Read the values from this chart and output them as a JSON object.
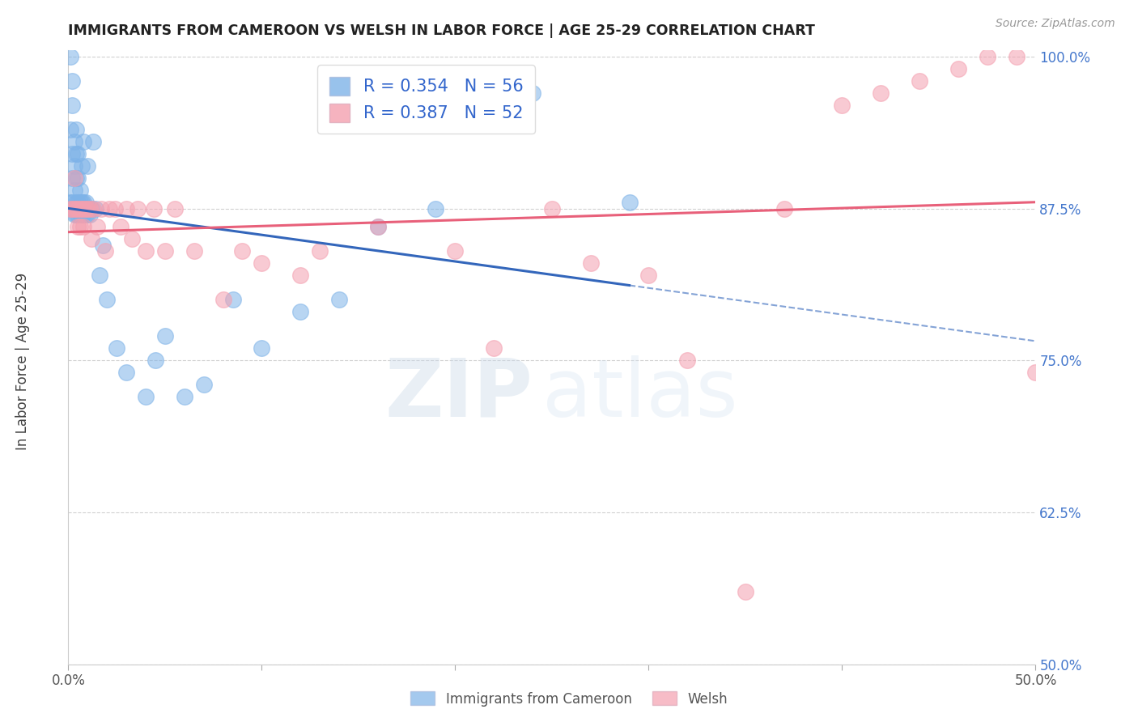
{
  "title": "IMMIGRANTS FROM CAMEROON VS WELSH IN LABOR FORCE | AGE 25-29 CORRELATION CHART",
  "source": "Source: ZipAtlas.com",
  "ylabel": "In Labor Force | Age 25-29",
  "xlim": [
    0.0,
    0.5
  ],
  "ylim": [
    0.5,
    1.005
  ],
  "xticks": [
    0.0,
    0.1,
    0.2,
    0.3,
    0.4,
    0.5
  ],
  "xticklabels": [
    "0.0%",
    "",
    "",
    "",
    "",
    "50.0%"
  ],
  "yticks": [
    0.5,
    0.625,
    0.75,
    0.875,
    1.0
  ],
  "yticklabels": [
    "50.0%",
    "62.5%",
    "75.0%",
    "87.5%",
    "100.0%"
  ],
  "blue_color": "#7EB3E8",
  "pink_color": "#F4A0B0",
  "blue_line_color": "#3366BB",
  "pink_line_color": "#E8607A",
  "legend_r_blue": "R = 0.354",
  "legend_n_blue": "N = 56",
  "legend_r_pink": "R = 0.387",
  "legend_n_pink": "N = 52",
  "legend_label_blue": "Immigrants from Cameroon",
  "legend_label_pink": "Welsh",
  "blue_x": [
    0.001,
    0.001,
    0.001,
    0.002,
    0.002,
    0.002,
    0.002,
    0.002,
    0.003,
    0.003,
    0.003,
    0.003,
    0.004,
    0.004,
    0.004,
    0.004,
    0.004,
    0.005,
    0.005,
    0.005,
    0.005,
    0.006,
    0.006,
    0.006,
    0.007,
    0.007,
    0.007,
    0.008,
    0.008,
    0.008,
    0.009,
    0.009,
    0.01,
    0.01,
    0.011,
    0.012,
    0.013,
    0.014,
    0.016,
    0.018,
    0.02,
    0.025,
    0.03,
    0.04,
    0.045,
    0.05,
    0.06,
    0.07,
    0.085,
    0.1,
    0.12,
    0.14,
    0.16,
    0.19,
    0.24,
    0.29
  ],
  "blue_y": [
    0.88,
    0.94,
    1.0,
    0.88,
    0.9,
    0.92,
    0.96,
    0.98,
    0.87,
    0.89,
    0.91,
    0.93,
    0.87,
    0.88,
    0.9,
    0.92,
    0.94,
    0.87,
    0.88,
    0.9,
    0.92,
    0.87,
    0.88,
    0.89,
    0.87,
    0.88,
    0.91,
    0.87,
    0.88,
    0.93,
    0.87,
    0.88,
    0.87,
    0.91,
    0.87,
    0.875,
    0.93,
    0.875,
    0.82,
    0.845,
    0.8,
    0.76,
    0.74,
    0.72,
    0.75,
    0.77,
    0.72,
    0.73,
    0.8,
    0.76,
    0.79,
    0.8,
    0.86,
    0.875,
    0.97,
    0.88
  ],
  "pink_x": [
    0.001,
    0.002,
    0.003,
    0.003,
    0.004,
    0.005,
    0.005,
    0.006,
    0.006,
    0.007,
    0.008,
    0.008,
    0.009,
    0.01,
    0.011,
    0.012,
    0.013,
    0.015,
    0.017,
    0.019,
    0.021,
    0.024,
    0.027,
    0.03,
    0.033,
    0.036,
    0.04,
    0.044,
    0.05,
    0.055,
    0.065,
    0.08,
    0.09,
    0.1,
    0.12,
    0.13,
    0.16,
    0.2,
    0.22,
    0.25,
    0.27,
    0.3,
    0.32,
    0.35,
    0.37,
    0.4,
    0.42,
    0.44,
    0.46,
    0.475,
    0.49,
    0.5
  ],
  "pink_y": [
    0.875,
    0.875,
    0.875,
    0.9,
    0.875,
    0.875,
    0.86,
    0.875,
    0.86,
    0.875,
    0.875,
    0.86,
    0.875,
    0.875,
    0.875,
    0.85,
    0.875,
    0.86,
    0.875,
    0.84,
    0.875,
    0.875,
    0.86,
    0.875,
    0.85,
    0.875,
    0.84,
    0.875,
    0.84,
    0.875,
    0.84,
    0.8,
    0.84,
    0.83,
    0.82,
    0.84,
    0.86,
    0.84,
    0.76,
    0.875,
    0.83,
    0.82,
    0.75,
    0.56,
    0.875,
    0.96,
    0.97,
    0.98,
    0.99,
    1.0,
    1.0,
    0.74
  ]
}
